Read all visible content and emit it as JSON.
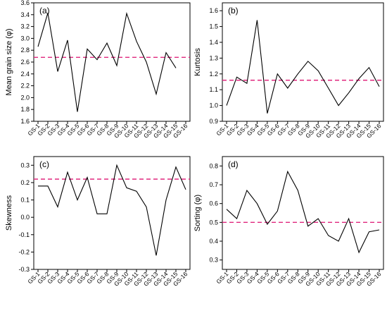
{
  "chart_data": [
    {
      "type": "line",
      "panel_label": "(a)",
      "ylabel": "Mean grain size (φ)",
      "categories": [
        "GS-1",
        "GS-2",
        "GS-3",
        "GS-4",
        "GS-5",
        "GS-6",
        "GS-7",
        "GS-8",
        "GS-9",
        "GS-10",
        "GS-11",
        "GS-12",
        "GS-13",
        "GS-14",
        "GS-15",
        "GS-16"
      ],
      "values": [
        2.86,
        3.43,
        2.44,
        2.97,
        1.76,
        2.82,
        2.64,
        2.92,
        2.54,
        3.42,
        2.95,
        2.6,
        2.06,
        2.76,
        2.5,
        null
      ],
      "reference_line": 2.68,
      "ylim": [
        1.6,
        3.6
      ],
      "yticks": [
        "1.6",
        "1.8",
        "2.0",
        "2.2",
        "2.4",
        "2.6",
        "2.8",
        "3.0",
        "3.2",
        "3.4",
        "3.6"
      ],
      "grid": false
    },
    {
      "type": "line",
      "panel_label": "(b)",
      "ylabel": "Kurtosis",
      "categories": [
        "GS-1",
        "GS-2",
        "GS-3",
        "GS-4",
        "GS-5",
        "GS-6",
        "GS-7",
        "GS-8",
        "GS-9",
        "GS-10",
        "GS-11",
        "GS-12",
        "GS-13",
        "GS-14",
        "GS-15",
        "GS-16"
      ],
      "values": [
        1.0,
        1.18,
        1.14,
        1.54,
        0.95,
        1.2,
        1.11,
        1.2,
        1.28,
        1.22,
        1.11,
        1.0,
        1.08,
        1.17,
        1.24,
        1.12
      ],
      "reference_line": 1.16,
      "ylim": [
        0.9,
        1.65
      ],
      "yticks": [
        "0.9",
        "1.0",
        "1.1",
        "1.2",
        "1.3",
        "1.4",
        "1.5",
        "1.6"
      ],
      "grid": false
    },
    {
      "type": "line",
      "panel_label": "(c)",
      "ylabel": "Skewness",
      "categories": [
        "GS-1",
        "GS-2",
        "GS-3",
        "GS-4",
        "GS-5",
        "GS-6",
        "GS-7",
        "GS-8",
        "GS-9",
        "GS-10",
        "GS-11",
        "GS-12",
        "GS-13",
        "GS-14",
        "GS-15",
        "GS-16"
      ],
      "values": [
        0.18,
        0.18,
        0.06,
        0.26,
        0.1,
        0.23,
        0.02,
        0.02,
        0.3,
        0.17,
        0.15,
        0.06,
        -0.22,
        0.1,
        0.29,
        0.16
      ],
      "reference_line": 0.22,
      "ylim": [
        -0.3,
        0.35
      ],
      "yticks": [
        "-0.3",
        "-0.2",
        "-0.1",
        "0.0",
        "0.1",
        "0.2",
        "0.3"
      ],
      "grid": false
    },
    {
      "type": "line",
      "panel_label": "(d)",
      "ylabel": "Sorting (φ)",
      "categories": [
        "GS-1",
        "GS-2",
        "GS-3",
        "GS-4",
        "GS-5",
        "GS-6",
        "GS-7",
        "GS-8",
        "GS-9",
        "GS-10",
        "GS-11",
        "GS-12",
        "GS-13",
        "GS-14",
        "GS-15",
        "GS-16"
      ],
      "values": [
        0.57,
        0.52,
        0.67,
        0.6,
        0.49,
        0.56,
        0.77,
        0.67,
        0.48,
        0.52,
        0.43,
        0.4,
        0.52,
        0.34,
        0.45,
        0.46
      ],
      "reference_line": 0.5,
      "ylim": [
        0.25,
        0.85
      ],
      "yticks": [
        "0.3",
        "0.4",
        "0.5",
        "0.6",
        "0.7",
        "0.8"
      ],
      "grid": false
    }
  ],
  "colors": {
    "line": "#000000",
    "reference": "#e0287e",
    "axis": "#000000"
  }
}
